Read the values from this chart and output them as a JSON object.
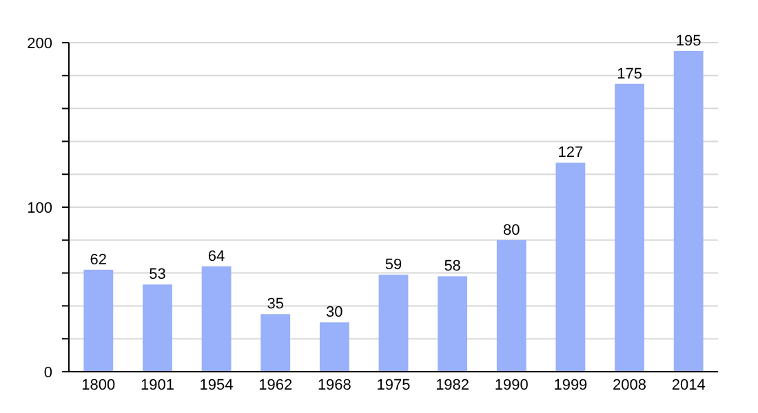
{
  "chart_data": {
    "type": "bar",
    "categories": [
      "1800",
      "1901",
      "1954",
      "1962",
      "1968",
      "1975",
      "1982",
      "1990",
      "1999",
      "2008",
      "2014"
    ],
    "values": [
      62,
      53,
      64,
      35,
      30,
      59,
      58,
      80,
      127,
      175,
      195
    ],
    "color": "#99b0fa",
    "ylim": [
      0,
      200
    ],
    "yticks": [
      0,
      {
        "value": 20,
        "label": null
      },
      {
        "value": 40,
        "label": null
      },
      {
        "value": 60,
        "label": null
      },
      {
        "value": 80,
        "label": null
      },
      100,
      {
        "value": 120,
        "label": null
      },
      {
        "value": 140,
        "label": null
      },
      {
        "value": 160,
        "label": null
      },
      {
        "value": 180,
        "label": null
      },
      200
    ],
    "grid": true,
    "data_labels": true
  }
}
